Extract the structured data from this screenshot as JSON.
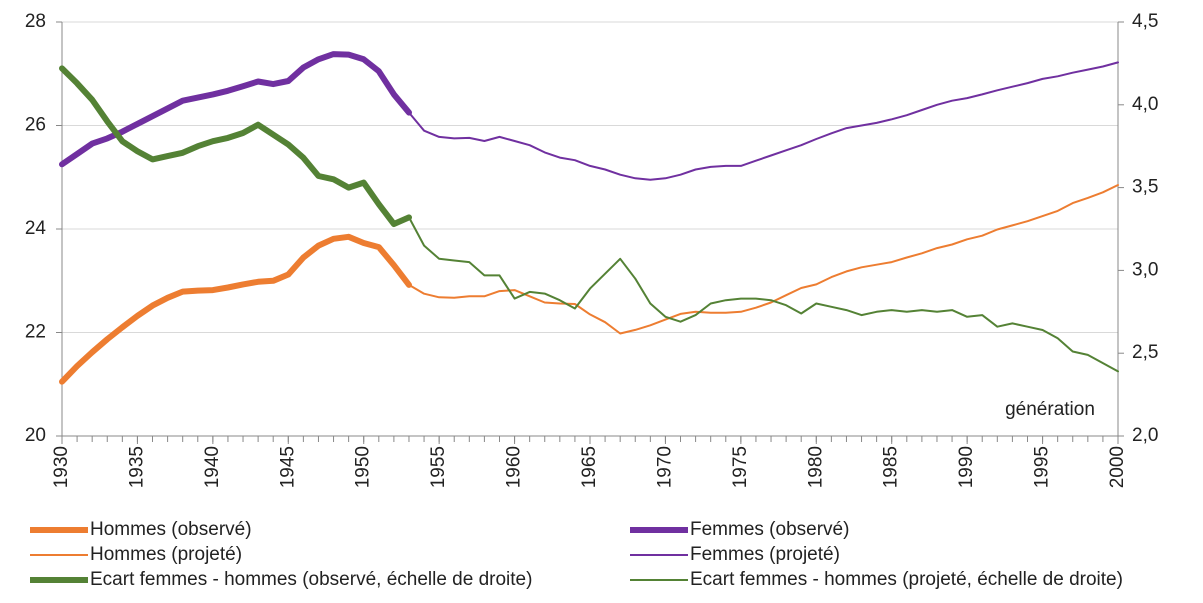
{
  "chart_data": {
    "type": "line",
    "annotation": "génération",
    "x": [
      1930,
      1931,
      1932,
      1933,
      1934,
      1935,
      1936,
      1937,
      1938,
      1939,
      1940,
      1941,
      1942,
      1943,
      1944,
      1945,
      1946,
      1947,
      1948,
      1949,
      1950,
      1951,
      1952,
      1953,
      1954,
      1955,
      1956,
      1957,
      1958,
      1959,
      1960,
      1961,
      1962,
      1963,
      1964,
      1965,
      1966,
      1967,
      1968,
      1969,
      1970,
      1971,
      1972,
      1973,
      1974,
      1975,
      1976,
      1977,
      1978,
      1979,
      1980,
      1981,
      1982,
      1983,
      1984,
      1985,
      1986,
      1987,
      1988,
      1989,
      1990,
      1991,
      1992,
      1993,
      1994,
      1995,
      1996,
      1997,
      1998,
      1999,
      2000
    ],
    "xlim": [
      1930,
      2000
    ],
    "xticks": [
      1930,
      1935,
      1940,
      1945,
      1950,
      1955,
      1960,
      1965,
      1970,
      1975,
      1980,
      1985,
      1990,
      1995,
      2000
    ],
    "ylim": [
      20,
      28
    ],
    "yticks": [
      20,
      22,
      24,
      26,
      28
    ],
    "y2lim": [
      2,
      4.5
    ],
    "y2ticks": [
      {
        "value": 2,
        "label": "2,0"
      },
      {
        "value": 2.5,
        "label": "2,5"
      },
      {
        "value": 3,
        "label": "3,0"
      },
      {
        "value": 3.5,
        "label": "3,5"
      },
      {
        "value": 4,
        "label": "4,0"
      },
      {
        "value": 4.5,
        "label": "4,5"
      }
    ],
    "grid": true,
    "legend": "bottom",
    "series": [
      {
        "name": "Hommes (observé)",
        "color": "#ed7d31",
        "width": "thick",
        "values": [
          21.05,
          21.35,
          21.62,
          21.87,
          22.1,
          22.32,
          22.52,
          22.67,
          22.79,
          22.81,
          22.82,
          22.87,
          22.93,
          22.98,
          23.0,
          23.12,
          23.45,
          23.68,
          23.81,
          23.85,
          23.73,
          23.65,
          23.3,
          22.92,
          null,
          null,
          null,
          null,
          null,
          null,
          null,
          null,
          null,
          null,
          null,
          null,
          null,
          null,
          null,
          null,
          null,
          null,
          null,
          null,
          null,
          null,
          null,
          null,
          null,
          null,
          null,
          null,
          null,
          null,
          null,
          null,
          null,
          null,
          null,
          null,
          null,
          null,
          null,
          null,
          null,
          null,
          null,
          null,
          null,
          null,
          null
        ]
      },
      {
        "name": "Femmes (observé)",
        "color": "#7030a0",
        "width": "thick",
        "values": [
          25.25,
          25.45,
          25.65,
          25.75,
          25.88,
          26.03,
          26.18,
          26.33,
          26.48,
          26.54,
          26.6,
          26.67,
          26.76,
          26.85,
          26.8,
          26.86,
          27.12,
          27.28,
          27.38,
          27.37,
          27.28,
          27.05,
          26.6,
          26.25,
          null,
          null,
          null,
          null,
          null,
          null,
          null,
          null,
          null,
          null,
          null,
          null,
          null,
          null,
          null,
          null,
          null,
          null,
          null,
          null,
          null,
          null,
          null,
          null,
          null,
          null,
          null,
          null,
          null,
          null,
          null,
          null,
          null,
          null,
          null,
          null,
          null,
          null,
          null,
          null,
          null,
          null,
          null,
          null,
          null,
          null,
          null
        ]
      },
      {
        "name": "Hommes (projeté)",
        "color": "#ed7d31",
        "width": "thin",
        "values": [
          null,
          null,
          null,
          null,
          null,
          null,
          null,
          null,
          null,
          null,
          null,
          null,
          null,
          null,
          null,
          null,
          null,
          null,
          null,
          null,
          null,
          null,
          null,
          22.92,
          22.75,
          22.68,
          22.67,
          22.7,
          22.7,
          22.8,
          22.82,
          22.7,
          22.58,
          22.56,
          22.55,
          22.35,
          22.2,
          21.98,
          22.05,
          22.14,
          22.25,
          22.36,
          22.4,
          22.38,
          22.38,
          22.4,
          22.48,
          22.58,
          22.72,
          22.86,
          22.93,
          23.07,
          23.18,
          23.26,
          23.31,
          23.36,
          23.45,
          23.53,
          23.63,
          23.7,
          23.8,
          23.87,
          23.99,
          24.07,
          24.15,
          24.25,
          24.35,
          24.5,
          24.6,
          24.71,
          24.85
        ]
      },
      {
        "name": "Femmes (projeté)",
        "color": "#7030a0",
        "width": "thin",
        "values": [
          null,
          null,
          null,
          null,
          null,
          null,
          null,
          null,
          null,
          null,
          null,
          null,
          null,
          null,
          null,
          null,
          null,
          null,
          null,
          null,
          null,
          null,
          null,
          26.25,
          25.9,
          25.78,
          25.75,
          25.76,
          25.7,
          25.78,
          25.7,
          25.62,
          25.48,
          25.38,
          25.33,
          25.22,
          25.15,
          25.05,
          24.98,
          24.95,
          24.98,
          25.05,
          25.15,
          25.2,
          25.22,
          25.22,
          25.32,
          25.42,
          25.52,
          25.62,
          25.74,
          25.85,
          25.95,
          26.0,
          26.05,
          26.12,
          26.2,
          26.3,
          26.4,
          26.48,
          26.53,
          26.6,
          26.68,
          26.75,
          26.82,
          26.9,
          26.95,
          27.02,
          27.08,
          27.14,
          27.22
        ]
      },
      {
        "name": "Ecart femmes - hommes (observé, échelle de droite)",
        "color": "#548235",
        "width": "thick",
        "axis": "y2",
        "values": [
          4.22,
          4.13,
          4.03,
          3.9,
          3.78,
          3.72,
          3.67,
          3.69,
          3.71,
          3.75,
          3.78,
          3.8,
          3.83,
          3.88,
          3.82,
          3.76,
          3.68,
          3.57,
          3.55,
          3.5,
          3.53,
          3.4,
          3.28,
          3.32,
          null,
          null,
          null,
          null,
          null,
          null,
          null,
          null,
          null,
          null,
          null,
          null,
          null,
          null,
          null,
          null,
          null,
          null,
          null,
          null,
          null,
          null,
          null,
          null,
          null,
          null,
          null,
          null,
          null,
          null,
          null,
          null,
          null,
          null,
          null,
          null,
          null,
          null,
          null,
          null,
          null,
          null,
          null,
          null,
          null,
          null,
          null
        ]
      },
      {
        "name": "Ecart femmes - hommes (projeté, échelle de droite)",
        "color": "#548235",
        "width": "thin",
        "axis": "y2",
        "values": [
          null,
          null,
          null,
          null,
          null,
          null,
          null,
          null,
          null,
          null,
          null,
          null,
          null,
          null,
          null,
          null,
          null,
          null,
          null,
          null,
          null,
          null,
          null,
          3.32,
          3.15,
          3.07,
          3.06,
          3.05,
          2.97,
          2.97,
          2.83,
          2.87,
          2.86,
          2.82,
          2.77,
          2.89,
          2.98,
          3.07,
          2.95,
          2.8,
          2.72,
          2.69,
          2.73,
          2.8,
          2.82,
          2.83,
          2.83,
          2.82,
          2.79,
          2.74,
          2.8,
          2.78,
          2.76,
          2.73,
          2.75,
          2.76,
          2.75,
          2.76,
          2.75,
          2.76,
          2.72,
          2.73,
          2.66,
          2.68,
          2.66,
          2.64,
          2.59,
          2.51,
          2.49,
          2.44,
          2.39
        ]
      }
    ]
  }
}
